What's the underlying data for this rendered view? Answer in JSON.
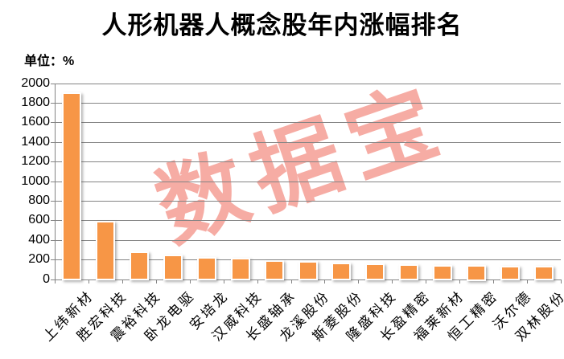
{
  "chart_data": {
    "type": "bar",
    "title": "人形机器人概念股年内涨幅排名",
    "unit_label": "单位：%",
    "watermark": "数据宝",
    "categories": [
      "上纬新材",
      "胜宏科技",
      "震裕科技",
      "卧龙电驱",
      "安培龙",
      "汉威科技",
      "长盛轴承",
      "龙溪股份",
      "斯菱股份",
      "隆盛科技",
      "长盈精密",
      "福莱新材",
      "恒工精密",
      "沃尔德",
      "双林股份"
    ],
    "values": [
      1890,
      575,
      265,
      235,
      205,
      200,
      180,
      165,
      152,
      145,
      138,
      130,
      125,
      120,
      118
    ],
    "xlabel": "",
    "ylabel": "",
    "ylim": [
      0,
      2000
    ],
    "ytick_step": 200,
    "grid": true,
    "legend": false,
    "colors": {
      "bar": "#F79646",
      "gridline": "#848484",
      "axis": "#848484",
      "watermark": "#F6ACA4",
      "text": "#000000"
    }
  }
}
